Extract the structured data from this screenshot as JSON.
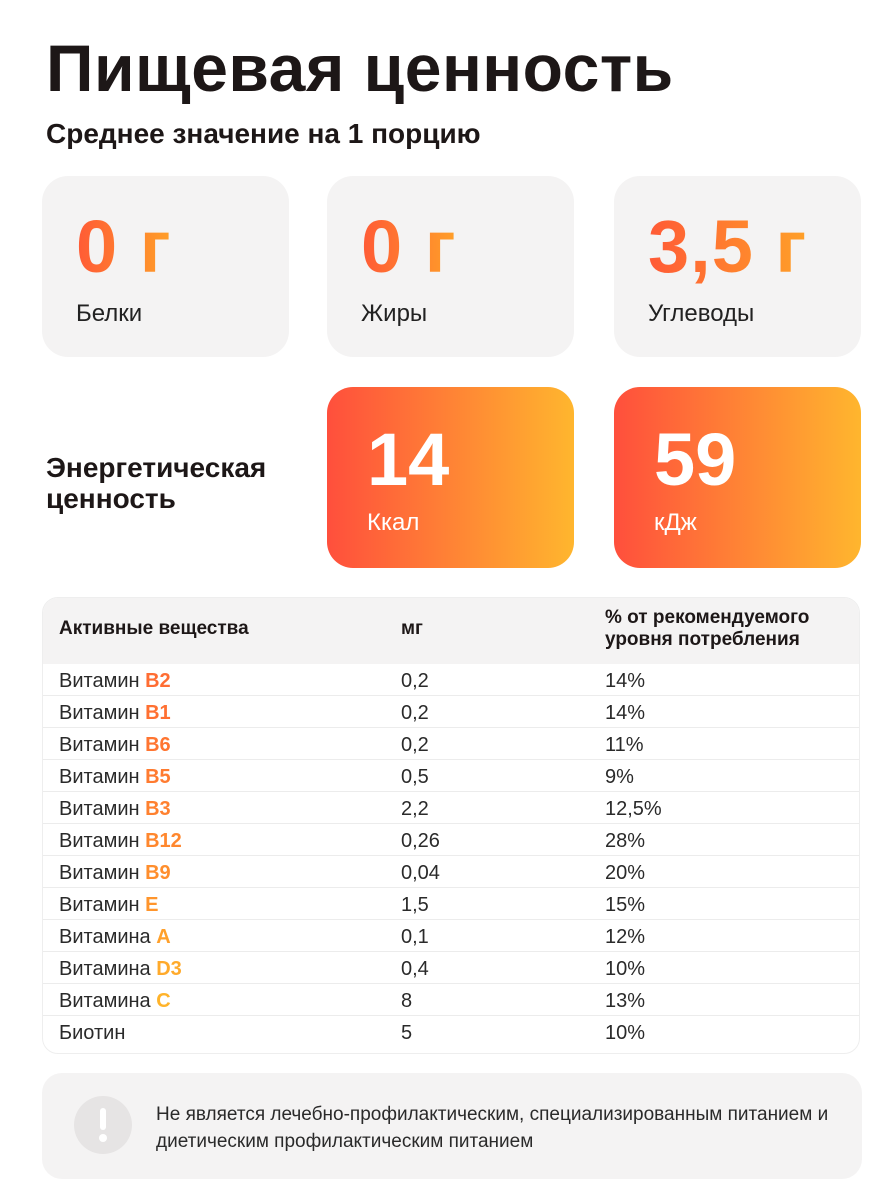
{
  "title": "Пищевая ценность",
  "subtitle": "Среднее значение на 1 порцию",
  "macros": [
    {
      "value": "0 г",
      "label": "Белки"
    },
    {
      "value": "0 г",
      "label": "Жиры"
    },
    {
      "value": "3,5 г",
      "label": "Углеводы"
    }
  ],
  "energy": {
    "label": "Энергетическая ценность",
    "kcal": {
      "value": "14",
      "unit": "Ккал"
    },
    "kj": {
      "value": "59",
      "unit": "кДж"
    }
  },
  "table": {
    "headers": [
      "Активные вещества",
      "мг",
      "% от рекомендуемого уровня потребления"
    ],
    "rows": [
      {
        "prefix": "Витамин",
        "code": "B2",
        "color": "#ff6d33",
        "mg": "0,2",
        "pct": "14%"
      },
      {
        "prefix": "Витамин",
        "code": "B1",
        "color": "#ff7032",
        "mg": "0,2",
        "pct": "14%"
      },
      {
        "prefix": "Витамин",
        "code": "B6",
        "color": "#ff7531",
        "mg": "0,2",
        "pct": "11%"
      },
      {
        "prefix": "Витамин",
        "code": "B5",
        "color": "#ff7b30",
        "mg": "0,5",
        "pct": "9%"
      },
      {
        "prefix": "Витамин",
        "code": "B3",
        "color": "#ff812f",
        "mg": "2,2",
        "pct": "12,5%"
      },
      {
        "prefix": "Витамин",
        "code": "B12",
        "color": "#ff872e",
        "mg": "0,26",
        "pct": "28%"
      },
      {
        "prefix": "Витамин",
        "code": "B9",
        "color": "#ff8e2d",
        "mg": "0,04",
        "pct": "20%"
      },
      {
        "prefix": "Витамин",
        "code": "E",
        "color": "#ff952c",
        "mg": "1,5",
        "pct": "15%"
      },
      {
        "prefix": "Витамина",
        "code": "A",
        "color": "#ffa02b",
        "mg": "0,1",
        "pct": "12%"
      },
      {
        "prefix": "Витамина",
        "code": "D3",
        "color": "#ffaa2b",
        "mg": "0,4",
        "pct": "10%"
      },
      {
        "prefix": "Витамина",
        "code": "C",
        "color": "#ffb32a",
        "mg": "8",
        "pct": "13%"
      },
      {
        "prefix": "Биотин",
        "code": "",
        "color": "#ffb32a",
        "mg": "5",
        "pct": "10%"
      }
    ]
  },
  "notice": {
    "icon": "exclamation-icon",
    "text": "Не является лечебно-профилактическим, специализированным питанием и диетическим профилактическим питанием"
  }
}
